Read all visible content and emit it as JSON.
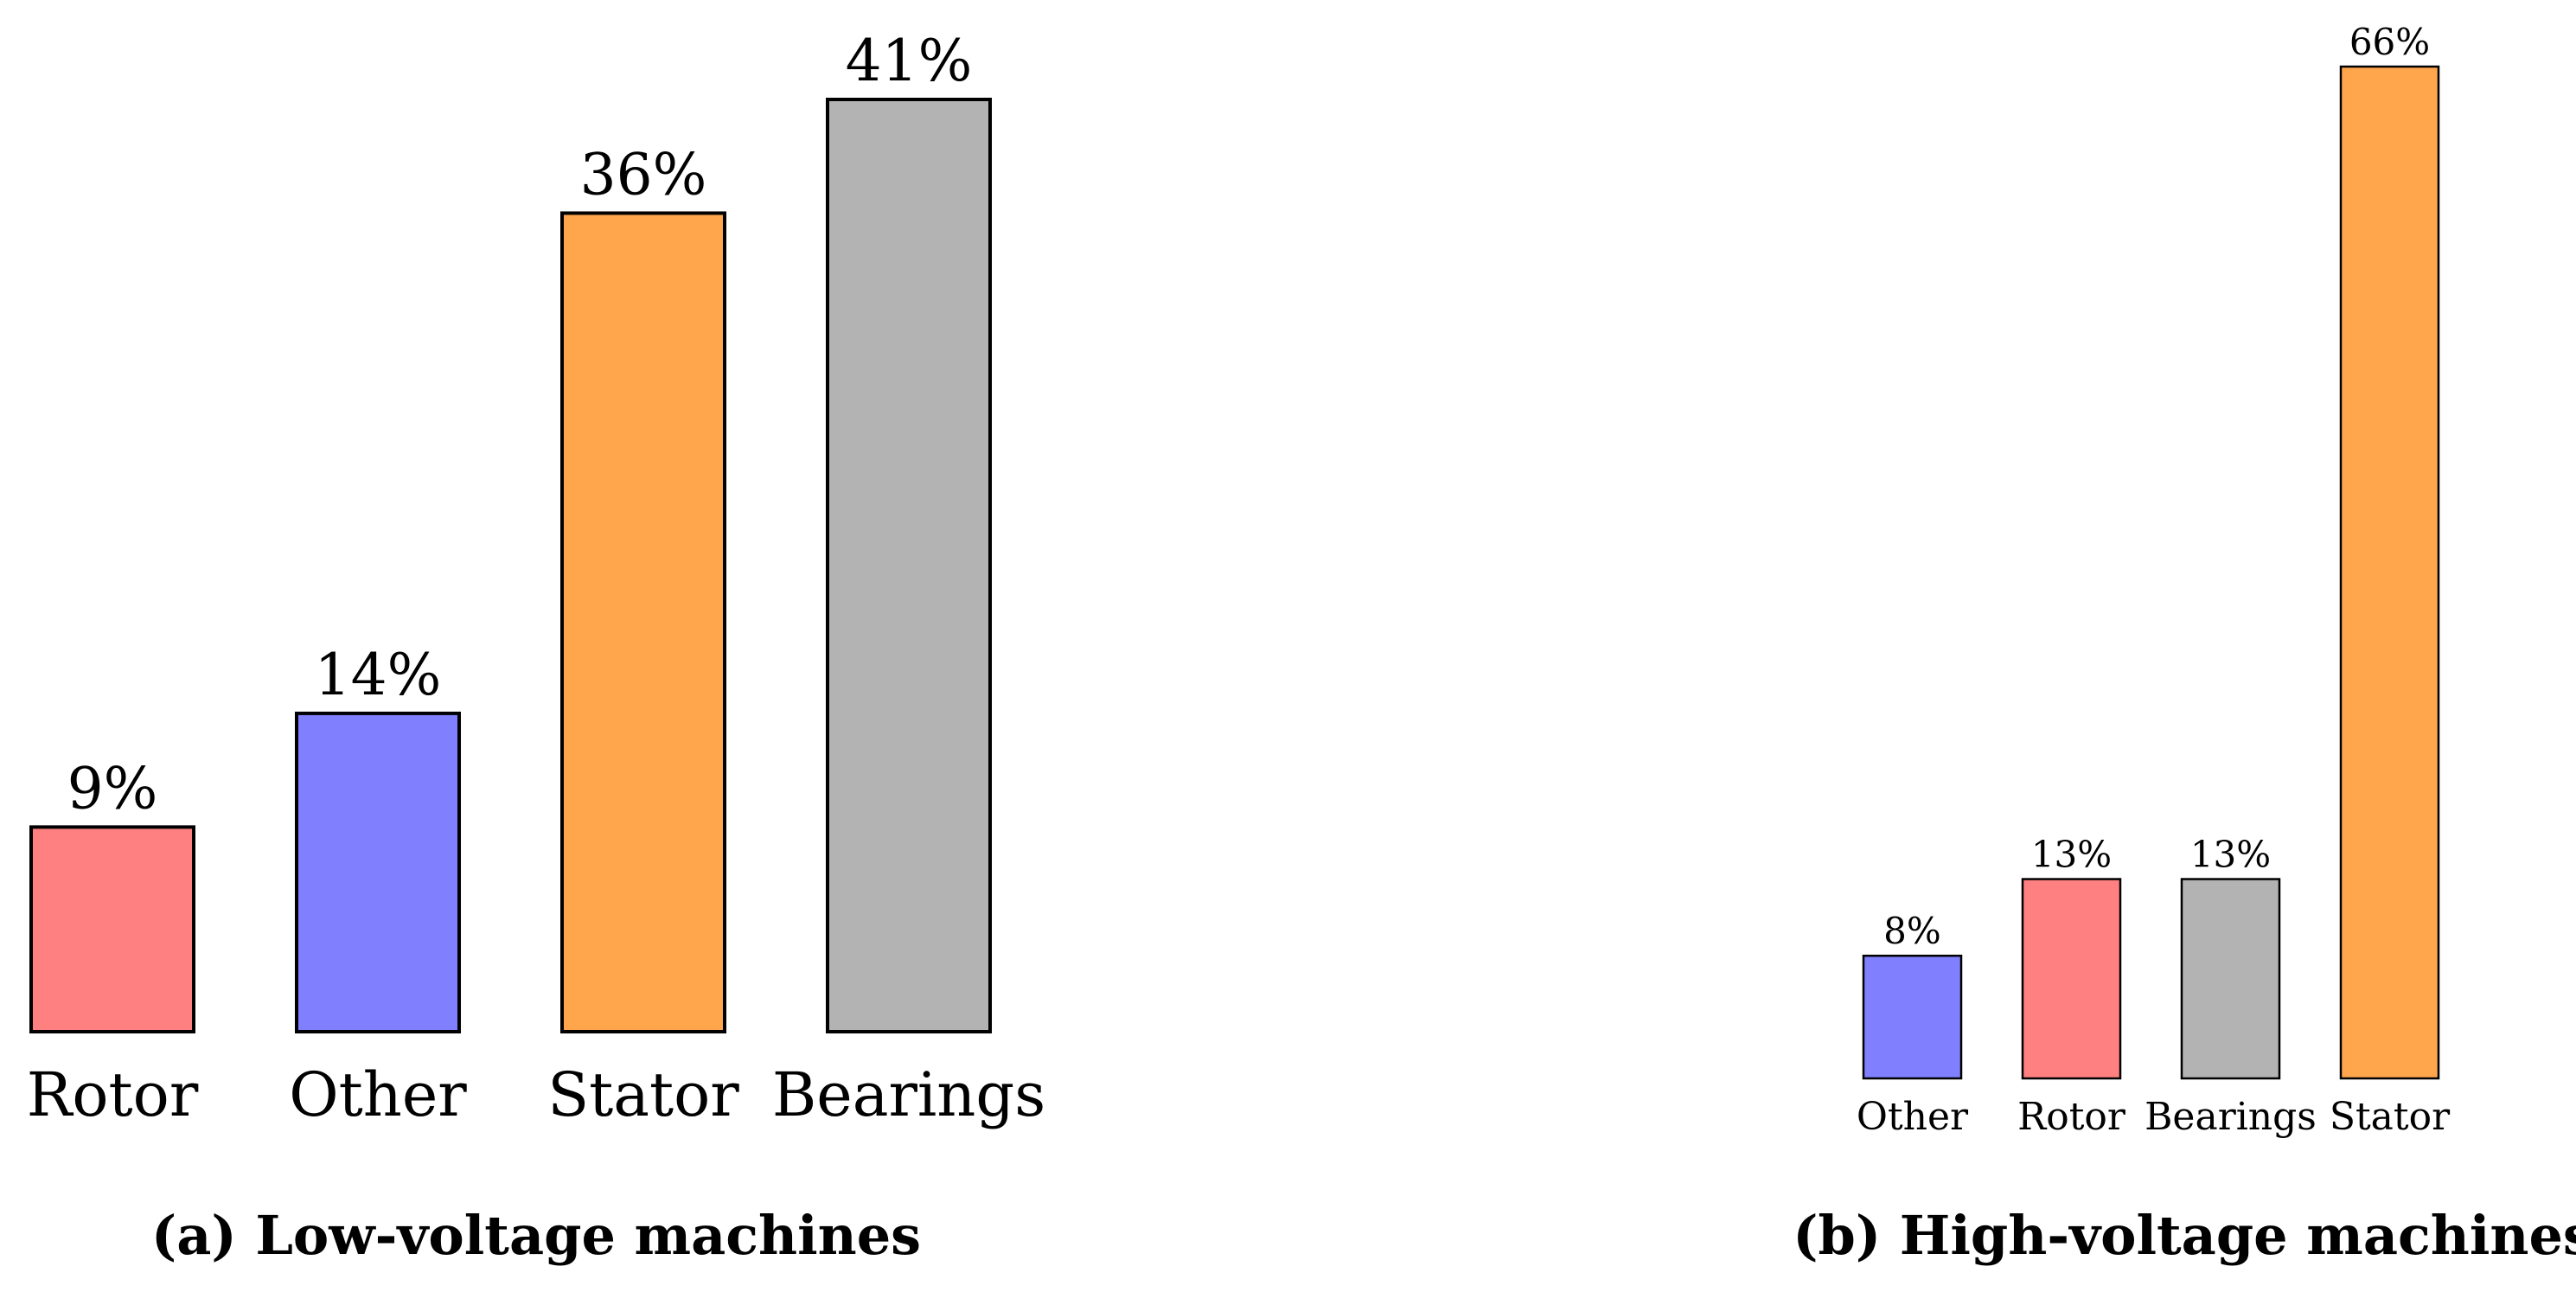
{
  "chart_data": [
    {
      "type": "bar",
      "caption": "(a) Low-voltage machines",
      "categories": [
        "Rotor",
        "Other",
        "Stator",
        "Bearings"
      ],
      "values": [
        9,
        14,
        36,
        41
      ],
      "value_labels": [
        "9%",
        "14%",
        "36%",
        "41%"
      ],
      "colors": [
        "#ff8080",
        "#8080ff",
        "#ffa64d",
        "#b3b3b3"
      ],
      "ylim": [
        0,
        41
      ],
      "grid": false,
      "legend": "none"
    },
    {
      "type": "bar",
      "caption": "(b) High-voltage machines",
      "categories": [
        "Other",
        "Rotor",
        "Bearings",
        "Stator"
      ],
      "values": [
        8,
        13,
        13,
        66
      ],
      "value_labels": [
        "8%",
        "13%",
        "13%",
        "66%"
      ],
      "colors": [
        "#8080ff",
        "#ff8080",
        "#b3b3b3",
        "#ffa64d"
      ],
      "ylim": [
        0,
        66
      ],
      "grid": false,
      "legend": "none"
    }
  ]
}
